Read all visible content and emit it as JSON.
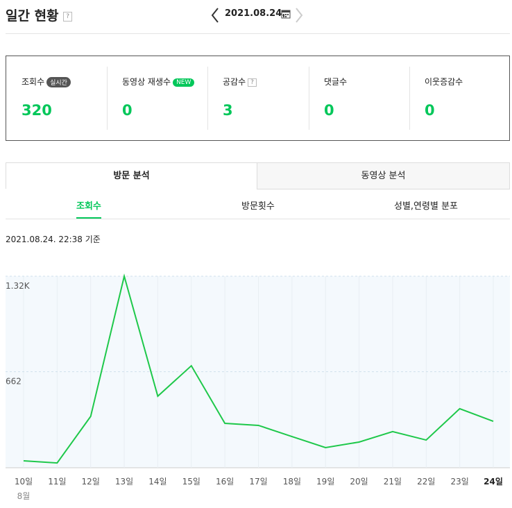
{
  "header": {
    "title": "일간 현황",
    "help": "?",
    "date": "2021.08.24."
  },
  "stats": [
    {
      "label": "조회수",
      "badge": "실시간",
      "value": 320
    },
    {
      "label": "동영상 재생수",
      "badge": "NEW",
      "value": 0
    },
    {
      "label": "공감수",
      "badge": "?",
      "value": 3
    },
    {
      "label": "댓글수",
      "value": 0
    },
    {
      "label": "이웃증감수",
      "value": 0
    }
  ],
  "tabs": [
    "방문 분석",
    "동영상 분석"
  ],
  "subtabs": [
    "조회수",
    "방문횟수",
    "성별,연령별 분포"
  ],
  "timestamp": "2021.08.24. 22:38 기준",
  "chart_data": {
    "type": "line",
    "categories": [
      "10일",
      "11일",
      "12일",
      "13일",
      "14일",
      "15일",
      "16일",
      "17일",
      "18일",
      "19일",
      "20일",
      "21일",
      "22일",
      "23일",
      "24일"
    ],
    "month_label": "8월",
    "series": [
      {
        "name": "조회수",
        "color": "#1ec84a",
        "values": [
          48,
          33,
          354,
          1320,
          493,
          703,
          306,
          292,
          215,
          139,
          177,
          249,
          191,
          407,
          320
        ]
      }
    ],
    "ylim": [
      0,
      1320
    ],
    "yticks": [
      {
        "value": 662,
        "label": "662"
      },
      {
        "value": 1320,
        "label": "1.32K"
      }
    ],
    "grid": true
  }
}
